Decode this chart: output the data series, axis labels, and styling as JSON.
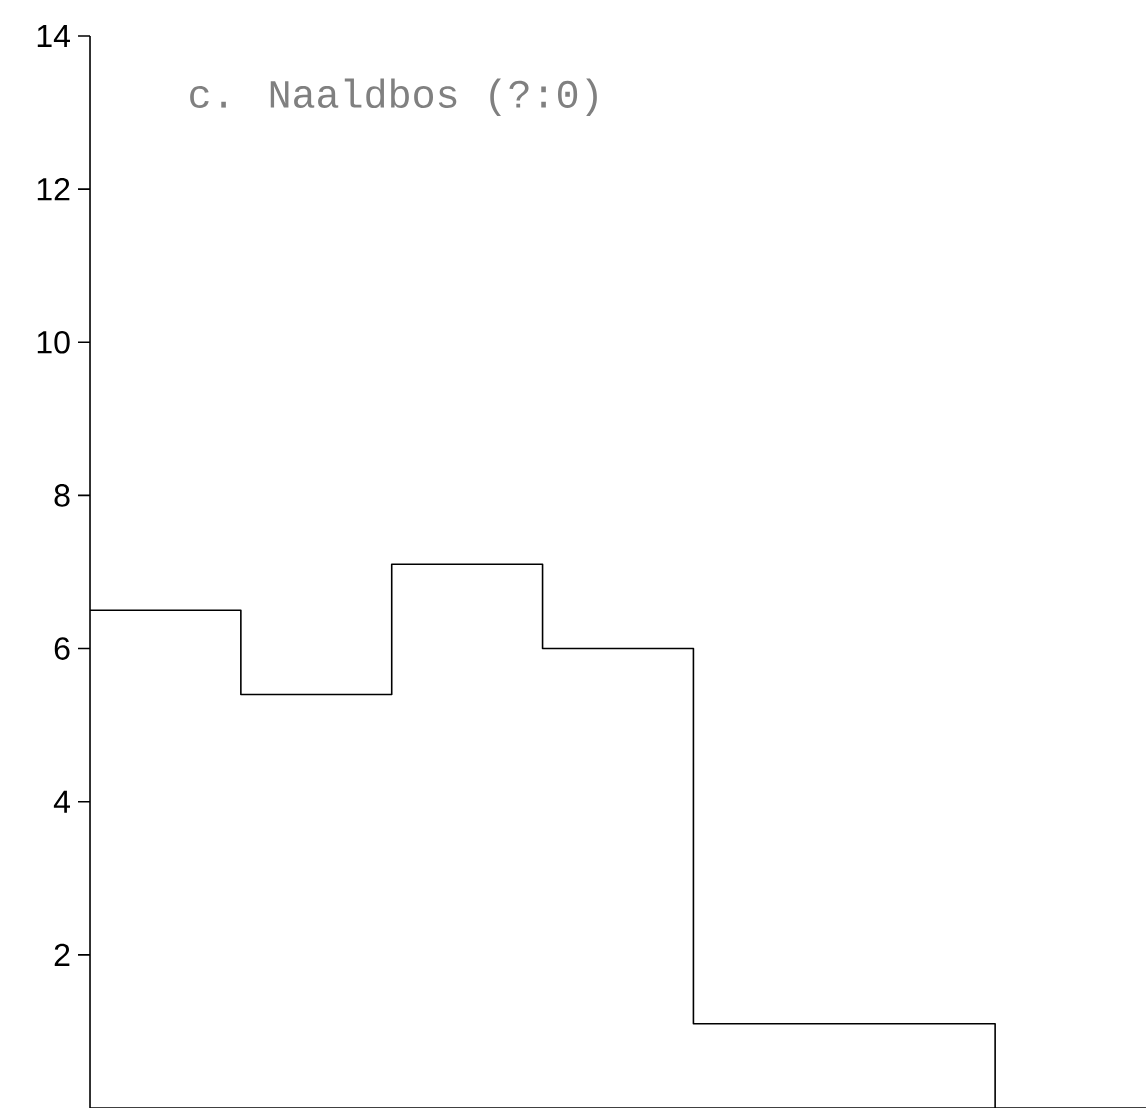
{
  "chart_data": {
    "type": "step",
    "title": "c. Naaldbos (?:0)",
    "categories": [
      null,
      null,
      null,
      null,
      null,
      null,
      null
    ],
    "values": [
      6.5,
      5.4,
      7.1,
      6.0,
      1.1,
      1.1,
      0
    ],
    "color": "#000000",
    "ylim": [
      0,
      14
    ],
    "yticks": [
      2,
      4,
      6,
      8,
      10,
      12,
      14
    ],
    "grid": false,
    "marker": "none",
    "line_style": "solid"
  }
}
